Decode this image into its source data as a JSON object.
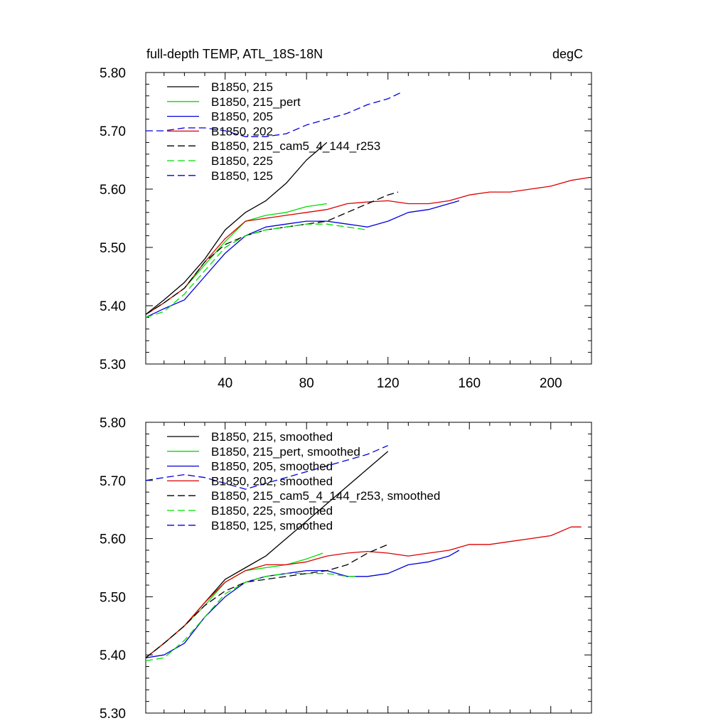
{
  "chart_data": [
    {
      "type": "line",
      "title_left": "full-depth TEMP, ATL_18S-18N",
      "title_right": "degC",
      "xlim": [
        1,
        220
      ],
      "ylim": [
        5.3,
        5.8
      ],
      "xticks": [
        40,
        80,
        120,
        160,
        200
      ],
      "xtick_labels": [
        "40",
        "80",
        "120",
        "160",
        "200"
      ],
      "yticks": [
        5.3,
        5.4,
        5.5,
        5.6,
        5.7,
        5.8
      ],
      "ytick_labels": [
        "5.30",
        "5.40",
        "5.50",
        "5.60",
        "5.70",
        "5.80"
      ],
      "series": [
        {
          "name": "B1850, 215",
          "color": "#000000",
          "dash": "solid",
          "x": [
            1,
            10,
            20,
            30,
            40,
            50,
            60,
            70,
            80,
            90
          ],
          "y": [
            5.385,
            5.41,
            5.44,
            5.48,
            5.53,
            5.56,
            5.58,
            5.61,
            5.65,
            5.68
          ]
        },
        {
          "name": "B1850, 215_pert",
          "color": "#00dd00",
          "dash": "solid",
          "x": [
            1,
            10,
            20,
            30,
            40,
            50,
            60,
            70,
            80,
            90
          ],
          "y": [
            5.385,
            5.405,
            5.43,
            5.47,
            5.51,
            5.545,
            5.555,
            5.56,
            5.57,
            5.575
          ]
        },
        {
          "name": "B1850, 205",
          "color": "#0000dd",
          "dash": "solid",
          "x": [
            1,
            10,
            20,
            30,
            40,
            50,
            60,
            70,
            80,
            90,
            100,
            110,
            120,
            130,
            140,
            150,
            155
          ],
          "y": [
            5.38,
            5.395,
            5.41,
            5.45,
            5.49,
            5.52,
            5.535,
            5.54,
            5.545,
            5.545,
            5.54,
            5.535,
            5.545,
            5.56,
            5.565,
            5.575,
            5.58
          ]
        },
        {
          "name": "B1850, 202",
          "color": "#dd0000",
          "dash": "solid",
          "x": [
            1,
            10,
            20,
            30,
            40,
            50,
            60,
            70,
            80,
            90,
            100,
            110,
            120,
            130,
            140,
            150,
            160,
            170,
            180,
            190,
            200,
            210,
            219
          ],
          "y": [
            5.385,
            5.405,
            5.43,
            5.475,
            5.515,
            5.545,
            5.55,
            5.555,
            5.56,
            5.565,
            5.575,
            5.578,
            5.58,
            5.575,
            5.575,
            5.58,
            5.59,
            5.595,
            5.595,
            5.6,
            5.605,
            5.615,
            5.62
          ]
        },
        {
          "name": "B1850, 215_cam5_4_144_r253",
          "color": "#000000",
          "dash": "dashed",
          "x": [
            1,
            10,
            20,
            30,
            40,
            50,
            60,
            70,
            80,
            90,
            100,
            110,
            120,
            125
          ],
          "y": [
            5.385,
            5.405,
            5.43,
            5.475,
            5.505,
            5.52,
            5.53,
            5.535,
            5.54,
            5.545,
            5.56,
            5.575,
            5.59,
            5.595
          ]
        },
        {
          "name": "B1850, 225",
          "color": "#00dd00",
          "dash": "dashed",
          "x": [
            1,
            10,
            20,
            30,
            40,
            50,
            60,
            70,
            80,
            90,
            100,
            110
          ],
          "y": [
            5.38,
            5.39,
            5.42,
            5.46,
            5.5,
            5.52,
            5.53,
            5.535,
            5.54,
            5.54,
            5.535,
            5.53
          ]
        },
        {
          "name": "B1850, 125",
          "color": "#0000dd",
          "dash": "dashed",
          "x": [
            1,
            10,
            20,
            30,
            40,
            50,
            60,
            70,
            80,
            90,
            100,
            110,
            120,
            126
          ],
          "y": [
            5.7,
            5.7,
            5.705,
            5.705,
            5.7,
            5.69,
            5.69,
            5.695,
            5.71,
            5.72,
            5.73,
            5.745,
            5.755,
            5.765
          ]
        }
      ]
    },
    {
      "type": "line",
      "xlim": [
        1,
        220
      ],
      "ylim": [
        5.3,
        5.8
      ],
      "yticks": [
        5.3,
        5.4,
        5.5,
        5.6,
        5.7,
        5.8
      ],
      "ytick_labels": [
        "5.30",
        "5.40",
        "5.50",
        "5.60",
        "5.70",
        "5.80"
      ],
      "xticks": [
        40,
        80,
        120,
        160,
        200
      ],
      "series": [
        {
          "name": "B1850, 215, smoothed",
          "color": "#000000",
          "dash": "solid",
          "x": [
            1,
            10,
            20,
            30,
            40,
            50,
            60,
            70,
            80,
            90,
            100,
            110,
            120
          ],
          "y": [
            5.395,
            5.42,
            5.45,
            5.49,
            5.53,
            5.55,
            5.57,
            5.6,
            5.63,
            5.66,
            5.69,
            5.72,
            5.75
          ]
        },
        {
          "name": "B1850, 215_pert, smoothed",
          "color": "#00dd00",
          "dash": "solid",
          "x": [
            1,
            10,
            20,
            30,
            40,
            50,
            60,
            70,
            80,
            88
          ],
          "y": [
            5.395,
            5.42,
            5.45,
            5.485,
            5.525,
            5.545,
            5.55,
            5.555,
            5.565,
            5.575
          ]
        },
        {
          "name": "B1850, 205, smoothed",
          "color": "#0000dd",
          "dash": "solid",
          "x": [
            1,
            10,
            20,
            30,
            40,
            50,
            60,
            70,
            80,
            90,
            100,
            110,
            120,
            130,
            140,
            150,
            155
          ],
          "y": [
            5.395,
            5.4,
            5.42,
            5.465,
            5.5,
            5.525,
            5.535,
            5.54,
            5.545,
            5.545,
            5.535,
            5.535,
            5.54,
            5.555,
            5.56,
            5.57,
            5.58
          ]
        },
        {
          "name": "B1850, 202, smoothed",
          "color": "#dd0000",
          "dash": "solid",
          "x": [
            1,
            10,
            20,
            30,
            40,
            50,
            60,
            70,
            80,
            90,
            100,
            110,
            120,
            130,
            140,
            150,
            160,
            170,
            180,
            190,
            200,
            210,
            215
          ],
          "y": [
            5.395,
            5.42,
            5.45,
            5.49,
            5.525,
            5.545,
            5.555,
            5.555,
            5.56,
            5.57,
            5.575,
            5.578,
            5.575,
            5.57,
            5.575,
            5.58,
            5.59,
            5.59,
            5.595,
            5.6,
            5.605,
            5.62,
            5.62
          ]
        },
        {
          "name": "B1850, 215_cam5_4_144_r253, smoothed",
          "color": "#000000",
          "dash": "dashed",
          "x": [
            1,
            10,
            20,
            30,
            40,
            50,
            60,
            70,
            80,
            90,
            100,
            110,
            120
          ],
          "y": [
            5.395,
            5.42,
            5.45,
            5.485,
            5.51,
            5.525,
            5.53,
            5.535,
            5.54,
            5.545,
            5.555,
            5.575,
            5.59
          ]
        },
        {
          "name": "B1850, 225, smoothed",
          "color": "#00dd00",
          "dash": "dashed",
          "x": [
            1,
            10,
            20,
            30,
            40,
            50,
            60,
            70,
            80,
            90,
            100,
            105
          ],
          "y": [
            5.39,
            5.395,
            5.425,
            5.465,
            5.505,
            5.525,
            5.535,
            5.54,
            5.54,
            5.54,
            5.535,
            5.535
          ]
        },
        {
          "name": "B1850, 125, smoothed",
          "color": "#0000dd",
          "dash": "dashed",
          "x": [
            1,
            10,
            20,
            30,
            40,
            50,
            60,
            70,
            80,
            90,
            100,
            110,
            120
          ],
          "y": [
            5.7,
            5.705,
            5.71,
            5.705,
            5.695,
            5.685,
            5.695,
            5.705,
            5.715,
            5.725,
            5.735,
            5.745,
            5.76
          ]
        }
      ]
    }
  ]
}
